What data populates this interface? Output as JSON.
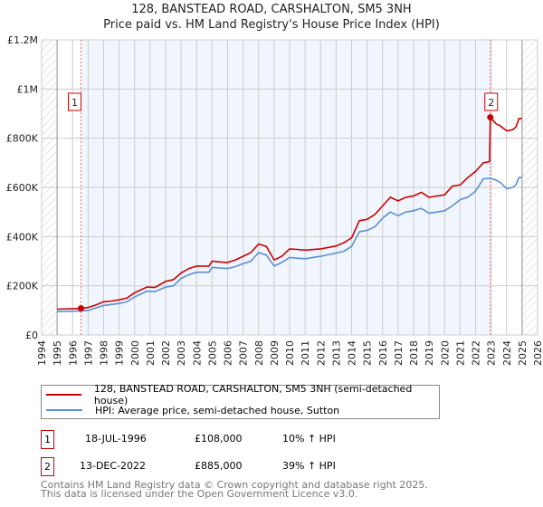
{
  "chart_data": {
    "type": "line",
    "title": "128, BANSTEAD ROAD, CARSHALTON, SM5 3NH",
    "subtitle": "Price paid vs. HM Land Registry's House Price Index (HPI)",
    "xlim": [
      1994,
      2026
    ],
    "ylim": [
      0,
      1200000
    ],
    "grid": true,
    "x_ticks": [
      "1994",
      "1995",
      "1996",
      "1997",
      "1998",
      "1999",
      "2000",
      "2001",
      "2002",
      "2003",
      "2004",
      "2005",
      "2006",
      "2007",
      "2008",
      "2009",
      "2010",
      "2011",
      "2012",
      "2013",
      "2014",
      "2015",
      "2016",
      "2017",
      "2018",
      "2019",
      "2020",
      "2021",
      "2022",
      "2023",
      "2024",
      "2025",
      "2026"
    ],
    "y_ticks": [
      {
        "v": 0,
        "label": "£0"
      },
      {
        "v": 200000,
        "label": "£200K"
      },
      {
        "v": 400000,
        "label": "£400K"
      },
      {
        "v": 600000,
        "label": "£600K"
      },
      {
        "v": 800000,
        "label": "£800K"
      },
      {
        "v": 1000000,
        "label": "£1M"
      },
      {
        "v": 1200000,
        "label": "£1.2M"
      }
    ],
    "hatched_before": 1995,
    "hatched_after": 2025,
    "shaded_range": [
      1996.54,
      2022.95
    ],
    "series": [
      {
        "name": "128, BANSTEAD ROAD, CARSHALTON, SM5 3NH (semi-detached house)",
        "color": "#cc0000",
        "x": [
          1995,
          1996.54,
          1997,
          1997.5,
          1998,
          1998.5,
          1999,
          1999.5,
          2000,
          2000.8,
          2001.3,
          2002,
          2002.5,
          2003,
          2003.5,
          2004,
          2004.8,
          2005,
          2005.5,
          2006,
          2006.5,
          2007,
          2007.5,
          2008,
          2008.5,
          2009,
          2009.5,
          2010,
          2010.5,
          2011,
          2012,
          2013,
          2013.5,
          2014,
          2014.5,
          2015,
          2015.5,
          2016,
          2016.5,
          2017,
          2017.5,
          2018,
          2018.5,
          2019,
          2019.5,
          2020,
          2020.5,
          2021,
          2021.5,
          2022,
          2022.5,
          2022.9,
          2022.95,
          2023.3,
          2023.6,
          2024,
          2024.4,
          2024.6,
          2024.8,
          2025
        ],
        "y": [
          105000,
          108000,
          112000,
          122000,
          135000,
          138000,
          143000,
          150000,
          172000,
          195000,
          193000,
          218000,
          225000,
          252000,
          270000,
          280000,
          280000,
          300000,
          297000,
          295000,
          305000,
          320000,
          335000,
          370000,
          360000,
          305000,
          320000,
          350000,
          348000,
          345000,
          350000,
          362000,
          375000,
          395000,
          465000,
          470000,
          490000,
          525000,
          560000,
          545000,
          560000,
          565000,
          580000,
          560000,
          565000,
          570000,
          605000,
          610000,
          640000,
          665000,
          700000,
          705000,
          885000,
          860000,
          850000,
          830000,
          835000,
          845000,
          880000,
          880000
        ]
      },
      {
        "name": "HPI: Average price, semi-detached house, Sutton",
        "color": "#5b8fd4",
        "x": [
          1995,
          1996.54,
          1997,
          1997.5,
          1998,
          1998.5,
          1999,
          1999.5,
          2000,
          2000.8,
          2001.3,
          2002,
          2002.5,
          2003,
          2003.5,
          2004,
          2004.8,
          2005,
          2005.5,
          2006,
          2006.5,
          2007,
          2007.5,
          2008,
          2008.5,
          2009,
          2009.5,
          2010,
          2010.5,
          2011,
          2012,
          2013,
          2013.5,
          2014,
          2014.5,
          2015,
          2015.5,
          2016,
          2016.5,
          2017,
          2017.5,
          2018,
          2018.5,
          2019,
          2019.5,
          2020,
          2020.5,
          2021,
          2021.5,
          2022,
          2022.5,
          2022.95,
          2023.3,
          2023.6,
          2024,
          2024.4,
          2024.6,
          2024.8,
          2025
        ],
        "y": [
          95000,
          98000,
          100000,
          110000,
          120000,
          124000,
          128000,
          135000,
          155000,
          178000,
          176000,
          195000,
          200000,
          230000,
          245000,
          255000,
          255000,
          275000,
          272000,
          270000,
          278000,
          290000,
          300000,
          335000,
          325000,
          280000,
          295000,
          315000,
          312000,
          310000,
          320000,
          333000,
          340000,
          360000,
          420000,
          425000,
          440000,
          475000,
          500000,
          485000,
          500000,
          505000,
          515000,
          495000,
          500000,
          505000,
          525000,
          550000,
          560000,
          585000,
          635000,
          637000,
          630000,
          620000,
          595000,
          600000,
          610000,
          640000,
          640000
        ]
      }
    ],
    "annotations": [
      {
        "label": "1",
        "x": 1996.54,
        "y": 108000
      },
      {
        "label": "2",
        "x": 2022.95,
        "y": 885000
      }
    ]
  },
  "legend": {
    "property": "128, BANSTEAD ROAD, CARSHALTON, SM5 3NH (semi-detached house)",
    "hpi": "HPI: Average price, semi-detached house, Sutton"
  },
  "sales": [
    {
      "num": "1",
      "date": "18-JUL-1996",
      "price": "£108,000",
      "hpi": "10% ↑ HPI"
    },
    {
      "num": "2",
      "date": "13-DEC-2022",
      "price": "£885,000",
      "hpi": "39% ↑ HPI"
    }
  ],
  "footer": {
    "line1": "Contains HM Land Registry data © Crown copyright and database right 2025.",
    "line2": "This data is licensed under the Open Government Licence v3.0."
  }
}
